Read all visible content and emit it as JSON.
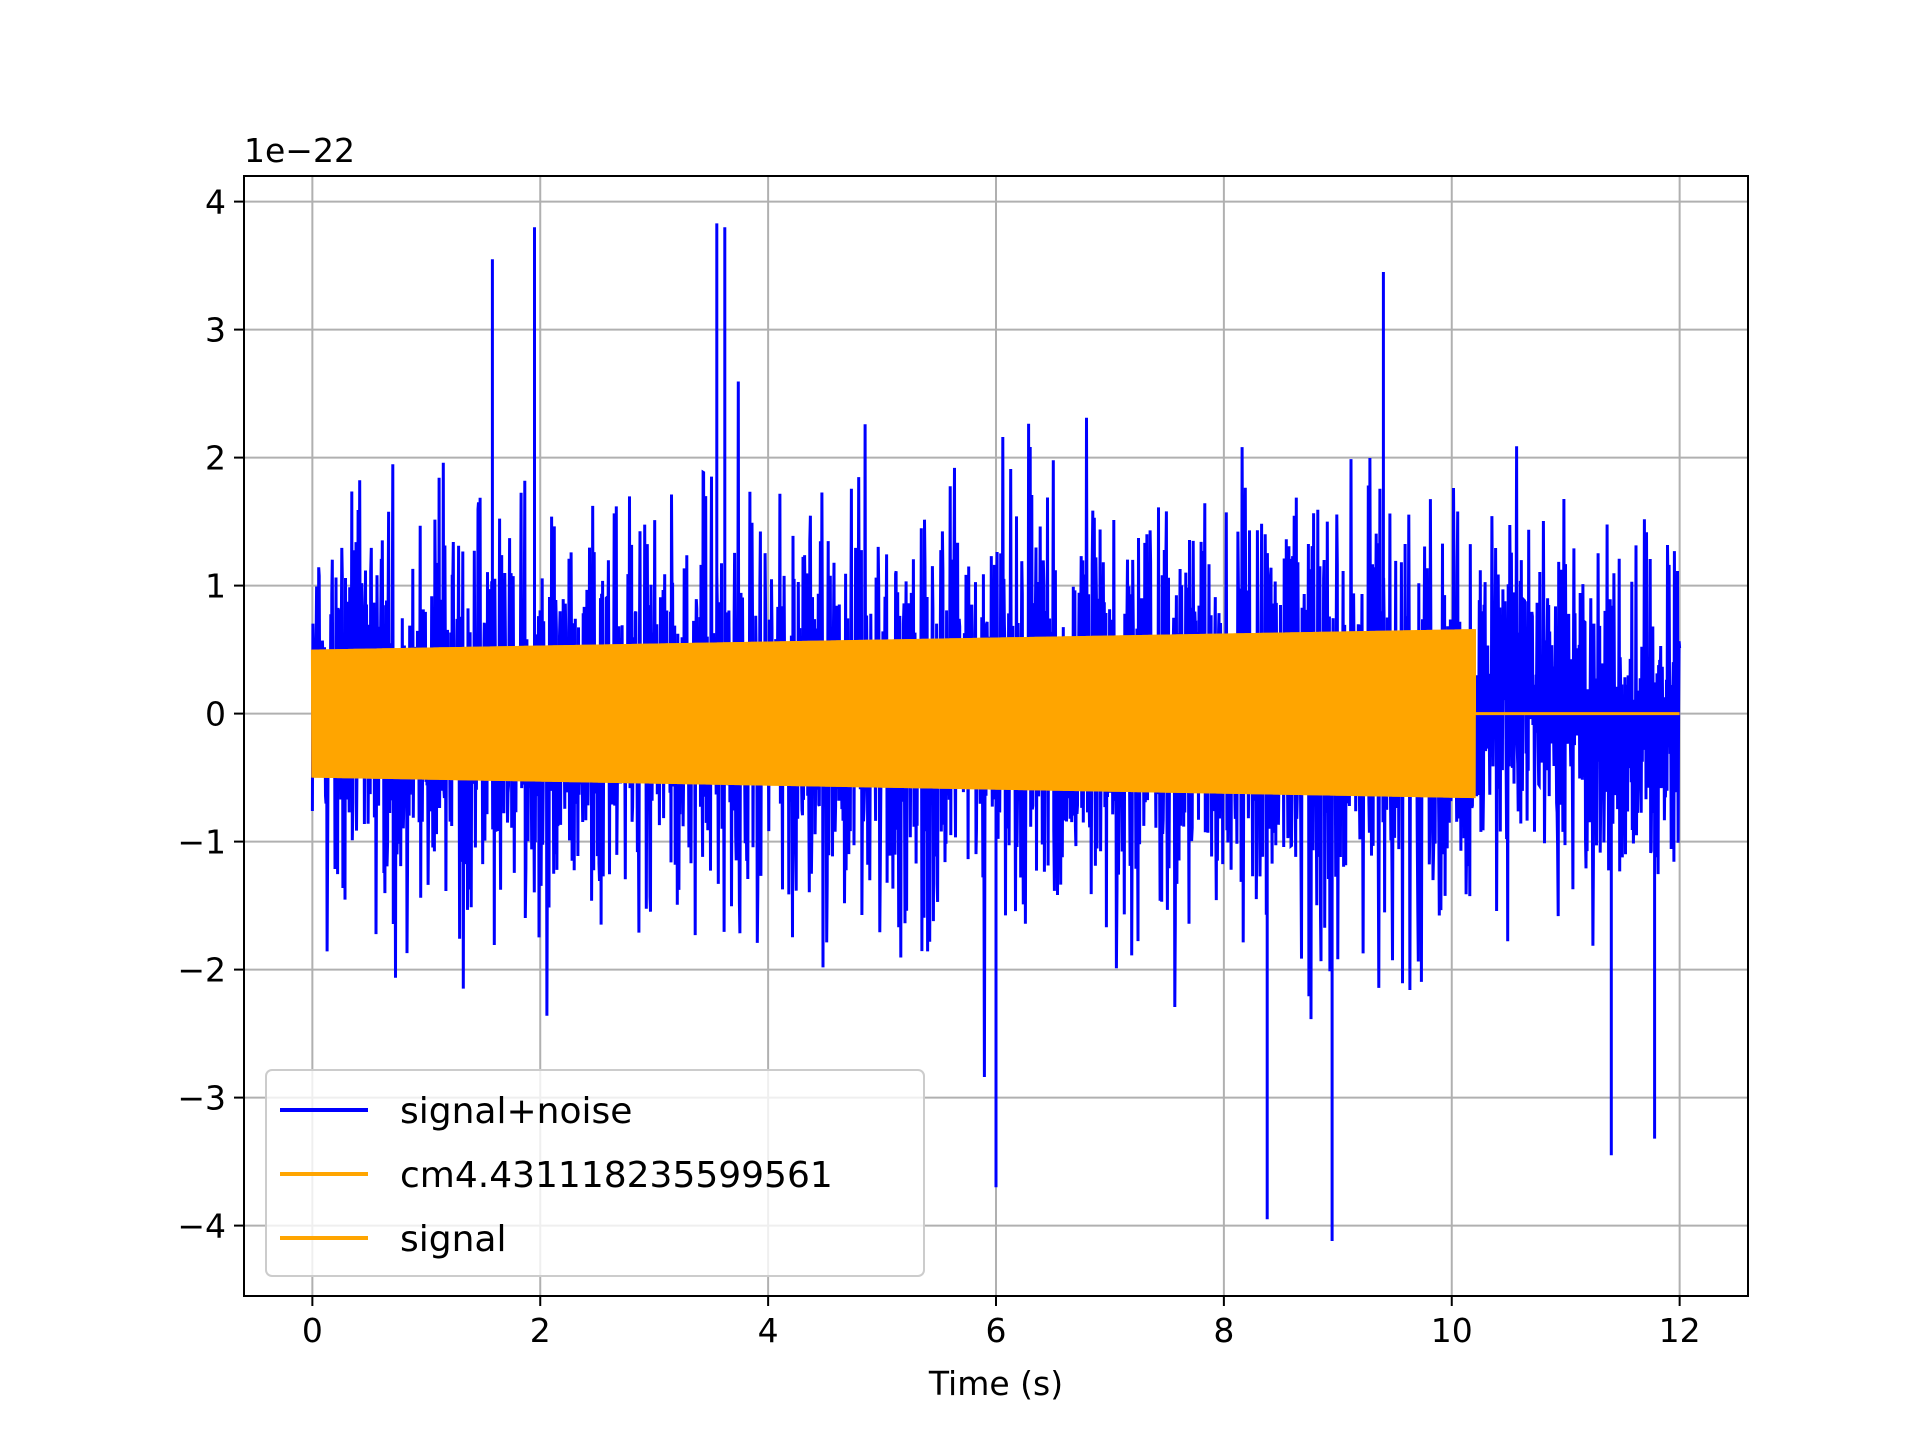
{
  "chart_data": {
    "type": "line",
    "title": "",
    "xlabel": "Time (s)",
    "ylabel": "",
    "y_offset_text": "1e−22",
    "xlim": [
      -0.6,
      12.6
    ],
    "ylim": [
      -4.55,
      4.2
    ],
    "xticks": [
      0,
      2,
      4,
      6,
      8,
      10,
      12
    ],
    "xtick_labels": [
      "0",
      "2",
      "4",
      "6",
      "8",
      "10",
      "12"
    ],
    "yticks": [
      4,
      3,
      2,
      1,
      0,
      -1,
      -2,
      -3,
      -4
    ],
    "ytick_labels": [
      "4",
      "3",
      "2",
      "1",
      "0",
      "−1",
      "−2",
      "−3",
      "−4"
    ],
    "grid": true,
    "legend_position": "lower-left",
    "series": [
      {
        "name": "signal+noise",
        "color": "#0000ff",
        "description_values": {
          "x_range": [
            0,
            12
          ],
          "approx_peaks": [
            [
              1.58,
              3.55
            ],
            [
              1.95,
              3.8
            ],
            [
              3.55,
              3.83
            ],
            [
              3.62,
              3.8
            ],
            [
              9.4,
              3.45
            ],
            [
              6.0,
              -3.7
            ],
            [
              8.38,
              -3.95
            ],
            [
              8.95,
              -4.12
            ],
            [
              11.4,
              -3.45
            ],
            [
              11.78,
              -3.32
            ]
          ],
          "typical_envelope": [
            -2.3,
            2.3
          ]
        }
      },
      {
        "name": "cm4.431118235599561",
        "color": "#ffa500",
        "description_values": {
          "x_range": [
            0,
            10.2
          ],
          "envelope_start": 0.5,
          "envelope_end": 0.66,
          "after_end": 0
        }
      },
      {
        "name": "signal",
        "color": "#ffa500",
        "description_values": {
          "x_range": [
            0,
            12
          ],
          "envelope_start": 0.5,
          "envelope_end": 0.66,
          "chirp_end": 10.2,
          "after_end": 0
        }
      }
    ]
  }
}
